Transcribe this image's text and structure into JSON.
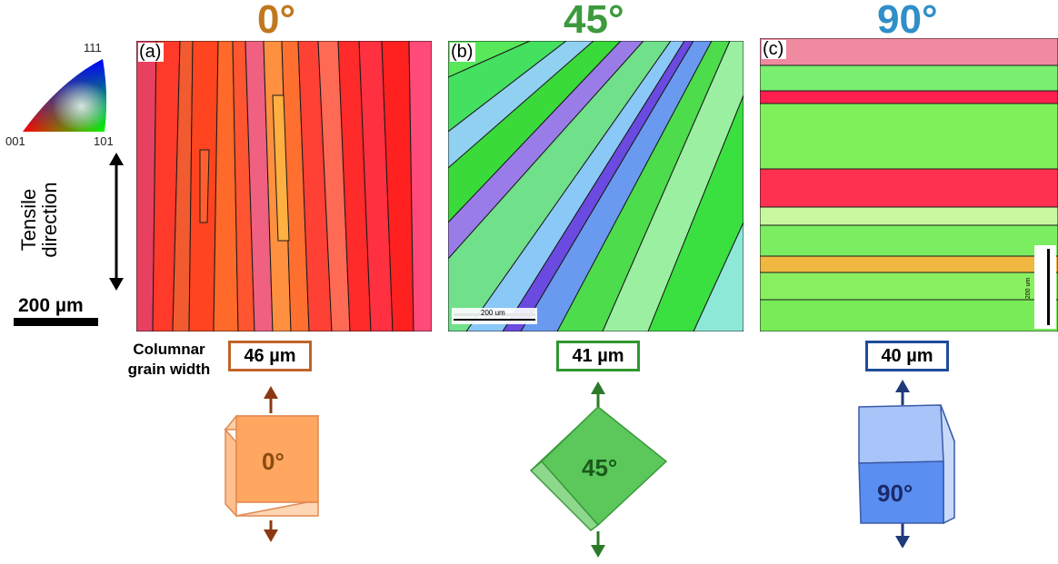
{
  "panels": [
    {
      "id": "a",
      "label": "(a)",
      "title": "0°",
      "title_color": "#c07820",
      "width_value": "46 µm",
      "box_color": "#c0642a",
      "cube_label": "0°"
    },
    {
      "id": "b",
      "label": "(b)",
      "title": "45°",
      "title_color": "#3c9a3c",
      "width_value": "41 µm",
      "box_color": "#2f962f",
      "cube_label": "45°"
    },
    {
      "id": "c",
      "label": "(c)",
      "title": "90°",
      "title_color": "#2f8fc8",
      "width_value": "40 µm",
      "box_color": "#1e4c9a",
      "cube_label": "90°"
    }
  ],
  "ipf_legend": {
    "top": "111",
    "left": "001",
    "right": "101"
  },
  "tensile_label_line1": "Tensile",
  "tensile_label_line2": "direction",
  "scale_bar_label": "200 µm",
  "grain_width_label_line1": "Columnar",
  "grain_width_label_line2": "grain width",
  "inset_scale_b": "200 um",
  "inset_scale_c": "200 um"
}
